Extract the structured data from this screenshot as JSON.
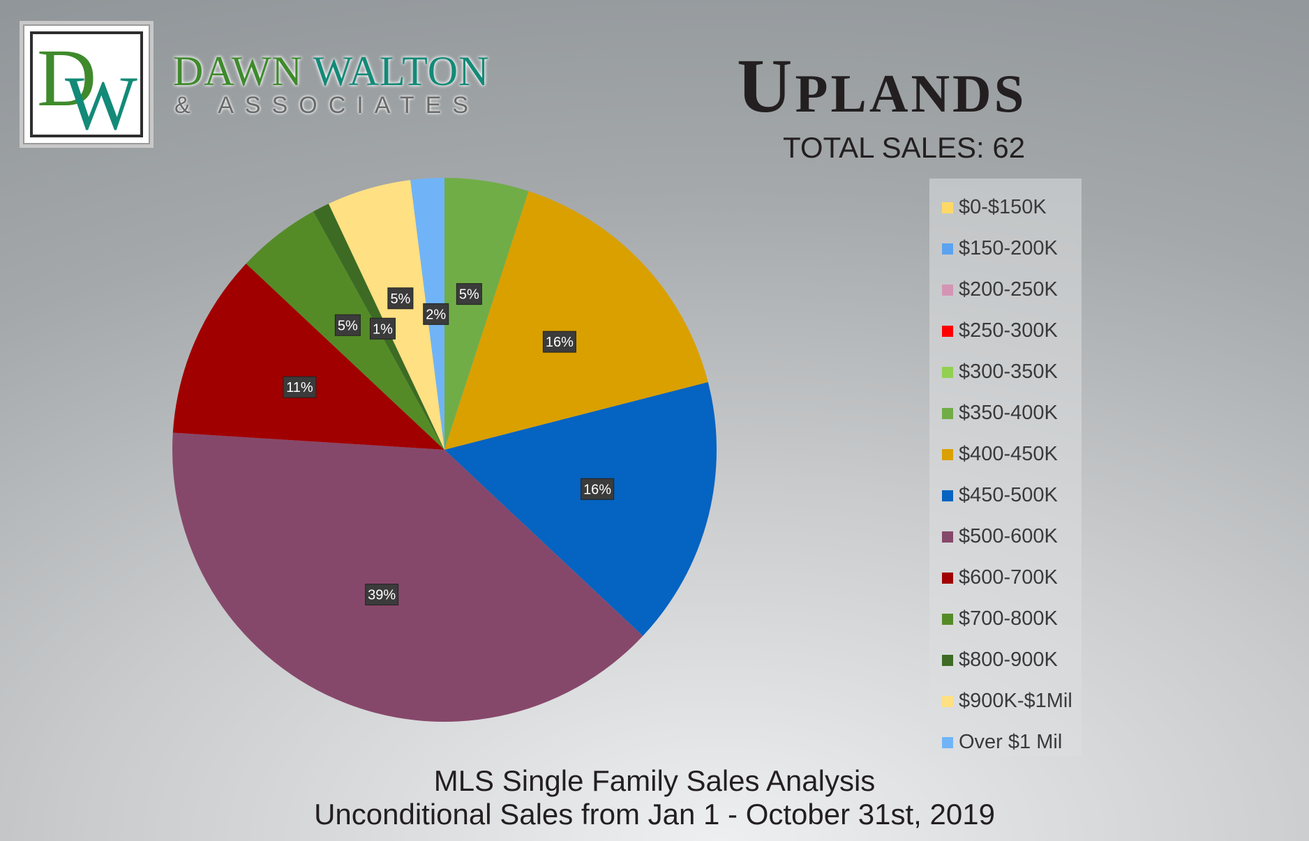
{
  "brand": {
    "logo_letters": "DW",
    "name_first": "DAWN",
    "name_last": "WALTON",
    "tagline": "& ASSOCIATES"
  },
  "header": {
    "title": "Uplands",
    "total_sales": "TOTAL SALES: 62"
  },
  "footer": {
    "line1": "MLS Single Family Sales Analysis",
    "line2": "Unconditional Sales from Jan 1 - October 31st, 2019"
  },
  "chart_data": {
    "type": "pie",
    "legend_position": "right",
    "categories": [
      "$0-$150K",
      "$150-200K",
      "$200-250K",
      "$250-300K",
      "$300-350K",
      "$350-400K",
      "$400-450K",
      "$450-500K",
      "$500-600K",
      "$600-700K",
      "$700-800K",
      "$800-900K",
      "$900K-$1Mil",
      "Over $1 Mil"
    ],
    "values": [
      0,
      0,
      0,
      0,
      0,
      5,
      16,
      16,
      39,
      11,
      5,
      1,
      5,
      2
    ],
    "data_labels": [
      "",
      "",
      "",
      "",
      "",
      "5%",
      "16%",
      "16%",
      "39%",
      "11%",
      "5%",
      "1%",
      "5%",
      "2%"
    ],
    "colors": [
      "#ffd966",
      "#5ba3f0",
      "#d495b4",
      "#ff0000",
      "#92d050",
      "#70ad47",
      "#d9a000",
      "#0563c1",
      "#86486a",
      "#a00000",
      "#548b27",
      "#3d6b23",
      "#ffe082",
      "#70b4f7"
    ]
  }
}
